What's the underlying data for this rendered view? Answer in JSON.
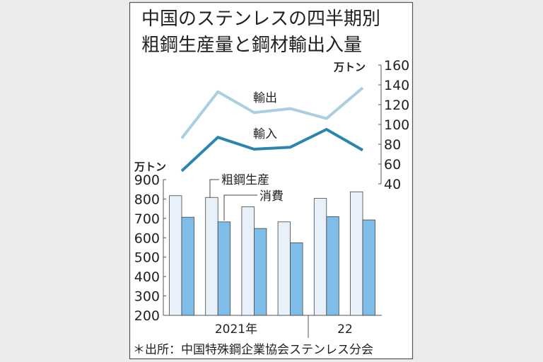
{
  "title_lines": [
    "中国のステンレスの四半期別",
    "粗鋼生産量と鋼材輸出入量"
  ],
  "source_note": "＊出所：中国特殊鋼企業協会ステンレス分会",
  "chart_data": [
    {
      "type": "line",
      "yunit": "万トン",
      "ylim": [
        40,
        160
      ],
      "yticks": [
        "40",
        "60",
        "80",
        "100",
        "120",
        "140",
        "160"
      ],
      "axis_side": "right",
      "categories": [
        "2021Q1",
        "2021Q2",
        "2021Q3",
        "2021Q4",
        "2022Q1",
        "2022Q2"
      ],
      "series": [
        {
          "name": "輸出",
          "values": [
            86,
            133,
            112,
            116,
            106,
            137
          ],
          "color": "#a9cfe0"
        },
        {
          "name": "輸入",
          "values": [
            53,
            87,
            75,
            77,
            95,
            74
          ],
          "color": "#2a86ad"
        }
      ]
    },
    {
      "type": "bar",
      "yunit": "万トン",
      "ylim": [
        200,
        900
      ],
      "yticks": [
        "200",
        "300",
        "400",
        "500",
        "600",
        "700",
        "800",
        "900"
      ],
      "axis_side": "left",
      "categories": [
        "2021Q1",
        "2021Q2",
        "2021Q3",
        "2021Q4",
        "2022Q1",
        "2022Q2"
      ],
      "xgroup_labels": [
        "2021年",
        "22"
      ],
      "series": [
        {
          "name": "粗鋼生産",
          "values": [
            817,
            808,
            760,
            682,
            803,
            837
          ],
          "color": "#e8f1fa"
        },
        {
          "name": "消費",
          "values": [
            706,
            682,
            648,
            574,
            709,
            692
          ],
          "color": "#7dbde8"
        }
      ]
    }
  ]
}
